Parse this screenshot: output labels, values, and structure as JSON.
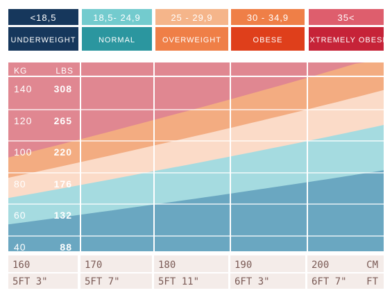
{
  "colors": {
    "underweight": "#16375c",
    "normal": "#2b969f",
    "overweight": "#ef7f47",
    "obese": "#df3f1b",
    "extremely_obese": "#c62338",
    "legend_top_underweight": "#16375c",
    "legend_top_normal": "#73cbce",
    "legend_top_overweight": "#f5b58a",
    "legend_top_obese": "#ef7f47",
    "legend_top_extremely_obese": "#de5e6d",
    "zone_extremely_obese": "#e08791",
    "zone_obese": "#f3ac81",
    "zone_overweight": "#fbdbc8",
    "zone_normal": "#a5dbe0",
    "zone_underweight": "#6aa7c1",
    "footer_bg": "#f4ece9",
    "footer_text": "#7a5a55"
  },
  "legend": [
    {
      "range": "<18,5",
      "label": "UNDERWEIGHT",
      "color_key": "underweight"
    },
    {
      "range": "18,5- 24,9",
      "label": "NORMAL",
      "color_key": "normal"
    },
    {
      "range": "25 - 29,9",
      "label": "OVERWEIGHT",
      "color_key": "overweight"
    },
    {
      "range": "30 - 34,9",
      "label": "OBESE",
      "color_key": "obese"
    },
    {
      "range": "35<",
      "label": "EXTREMELY OBESE",
      "color_key": "extremely_obese"
    }
  ],
  "chart_data": {
    "type": "area",
    "x_unit_primary": "CM",
    "x_unit_secondary": "FT",
    "y_unit_primary": "KG",
    "y_unit_secondary": "LBS",
    "xlim": [
      160,
      210
    ],
    "ylim": [
      35,
      150
    ],
    "x_ticks": [
      {
        "cm": "160",
        "ft": "5FT 3\""
      },
      {
        "cm": "170",
        "ft": "5FT 7\""
      },
      {
        "cm": "180",
        "ft": "5FT 11\""
      },
      {
        "cm": "190",
        "ft": "6FT 3\""
      },
      {
        "cm": "200",
        "ft": "6FT 7\""
      }
    ],
    "y_ticks": [
      {
        "kg": "140",
        "lbs": "308"
      },
      {
        "kg": "120",
        "lbs": "265"
      },
      {
        "kg": "100",
        "lbs": "220"
      },
      {
        "kg": "80",
        "lbs": "176"
      },
      {
        "kg": "60",
        "lbs": "132"
      },
      {
        "kg": "40",
        "lbs": "88"
      }
    ],
    "bmi_thresholds": [
      18.5,
      25,
      30,
      35
    ],
    "zones": [
      {
        "name": "UNDERWEIGHT",
        "bmi": [
          0,
          18.5
        ]
      },
      {
        "name": "NORMAL",
        "bmi": [
          18.5,
          25
        ]
      },
      {
        "name": "OVERWEIGHT",
        "bmi": [
          25,
          30
        ]
      },
      {
        "name": "OBESE",
        "bmi": [
          30,
          35
        ]
      },
      {
        "name": "EXTREMELY OBESE",
        "bmi": [
          35,
          100
        ]
      }
    ],
    "grid": true
  }
}
